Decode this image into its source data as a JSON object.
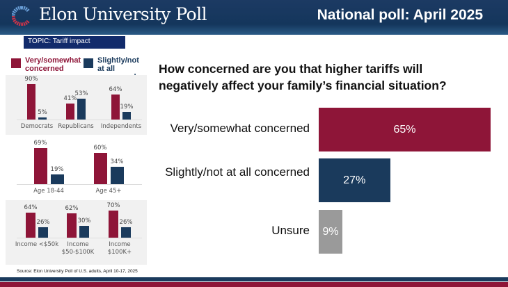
{
  "header": {
    "brand": "Elon University Poll",
    "title": "National poll: April 2025"
  },
  "topic": "TOPIC: Tariff impact",
  "colors": {
    "concerned": "#8e1538",
    "not_concerned": "#1a3a5c",
    "unsure": "#9a9a9a",
    "panel_bg": "#f1f1f1"
  },
  "legend": [
    {
      "label": "Very/somewhat concerned"
    },
    {
      "label": "Slightly/not at all concerned"
    }
  ],
  "chart_data": [
    {
      "type": "bar",
      "title": "How concerned are you that higher tariffs will negatively affect your family’s financial situation?",
      "orientation": "horizontal",
      "categories": [
        "Very/somewhat concerned",
        "Slightly/not at all concerned",
        "Unsure"
      ],
      "values": [
        65,
        27,
        9
      ],
      "value_labels": [
        "65%",
        "27%",
        "9%"
      ],
      "xlim": [
        0,
        70
      ]
    },
    {
      "type": "bar",
      "categories": [
        "Democrats",
        "Republicans",
        "Independents"
      ],
      "series": [
        {
          "name": "Very/somewhat concerned",
          "values": [
            90,
            41,
            64
          ],
          "labels": [
            "90%",
            "41%",
            "64%"
          ]
        },
        {
          "name": "Slightly/not at all concerned",
          "values": [
            5,
            53,
            19
          ],
          "labels": [
            "5%",
            "53%",
            "19%"
          ]
        }
      ]
    },
    {
      "type": "bar",
      "categories": [
        "Age 18-44",
        "Age 45+"
      ],
      "series": [
        {
          "name": "Very/somewhat concerned",
          "values": [
            69,
            60
          ],
          "labels": [
            "69%",
            "60%"
          ]
        },
        {
          "name": "Slightly/not at all concerned",
          "values": [
            19,
            34
          ],
          "labels": [
            "19%",
            "34%"
          ]
        }
      ]
    },
    {
      "type": "bar",
      "categories": [
        "Income <$50k",
        "Income $50-$100K",
        "Income $100K+"
      ],
      "series": [
        {
          "name": "Very/somewhat concerned",
          "values": [
            64,
            62,
            70
          ],
          "labels": [
            "64%",
            "62%",
            "70%"
          ]
        },
        {
          "name": "Slightly/not at all concerned",
          "values": [
            26,
            30,
            26
          ],
          "labels": [
            "26%",
            "30%",
            "26%"
          ]
        }
      ]
    }
  ],
  "source": "Source: Elon University Poll of U.S. adults, April 10-17, 2025"
}
